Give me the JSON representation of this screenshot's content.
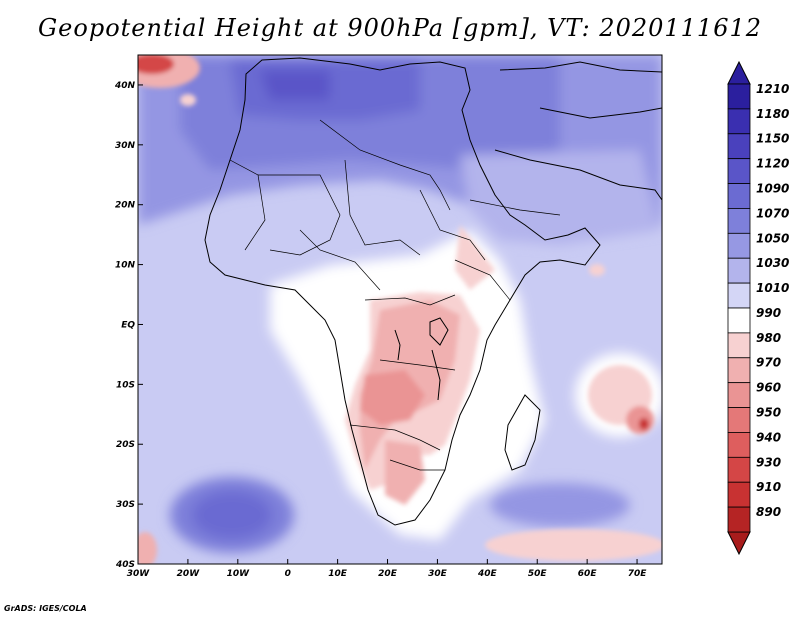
{
  "title": "Geopotential Height at 900hPa [gpm], VT: 2020111612",
  "credit": "GrADS: IGES/COLA",
  "map": {
    "variable": "Geopotential Height",
    "level": "900hPa",
    "units": "gpm",
    "valid_time": "2020111612",
    "lon_range": [
      -30,
      75
    ],
    "lat_range": [
      -40,
      45
    ],
    "lon_ticks": [
      {
        "value": -30,
        "label": "30W"
      },
      {
        "value": -20,
        "label": "20W"
      },
      {
        "value": -10,
        "label": "10W"
      },
      {
        "value": 0,
        "label": "0"
      },
      {
        "value": 10,
        "label": "10E"
      },
      {
        "value": 20,
        "label": "20E"
      },
      {
        "value": 30,
        "label": "30E"
      },
      {
        "value": 40,
        "label": "40E"
      },
      {
        "value": 50,
        "label": "50E"
      },
      {
        "value": 60,
        "label": "60E"
      },
      {
        "value": 70,
        "label": "70E"
      }
    ],
    "lat_ticks": [
      {
        "value": 40,
        "label": "40N"
      },
      {
        "value": 30,
        "label": "30N"
      },
      {
        "value": 20,
        "label": "20N"
      },
      {
        "value": 10,
        "label": "10N"
      },
      {
        "value": 0,
        "label": "EQ"
      },
      {
        "value": -10,
        "label": "10S"
      },
      {
        "value": -20,
        "label": "20S"
      },
      {
        "value": -30,
        "label": "30S"
      },
      {
        "value": -40,
        "label": "40S"
      }
    ]
  },
  "colorbar": {
    "levels": [
      {
        "label": "1210",
        "color": "#2b1f9e"
      },
      {
        "label": "1180",
        "color": "#3a2fb0"
      },
      {
        "label": "1150",
        "color": "#4a41bd"
      },
      {
        "label": "1120",
        "color": "#5a55c8"
      },
      {
        "label": "1090",
        "color": "#6b6bd2"
      },
      {
        "label": "1070",
        "color": "#7e80da"
      },
      {
        "label": "1050",
        "color": "#9698e3"
      },
      {
        "label": "1030",
        "color": "#b3b4ec"
      },
      {
        "label": "1010",
        "color": "#d4d6f6"
      },
      {
        "label": "990",
        "color": "#ffffff"
      },
      {
        "label": "980",
        "color": "#f7d1d1"
      },
      {
        "label": "970",
        "color": "#f0b0b0"
      },
      {
        "label": "960",
        "color": "#ea9494"
      },
      {
        "label": "950",
        "color": "#e47878"
      },
      {
        "label": "940",
        "color": "#de5e5e"
      },
      {
        "label": "930",
        "color": "#d44646"
      },
      {
        "label": "910",
        "color": "#c83232"
      },
      {
        "label": "890",
        "color": "#b52424"
      }
    ],
    "top_arrow_color": "#2b1f9e",
    "bottom_arrow_color": "#a81c1c"
  }
}
